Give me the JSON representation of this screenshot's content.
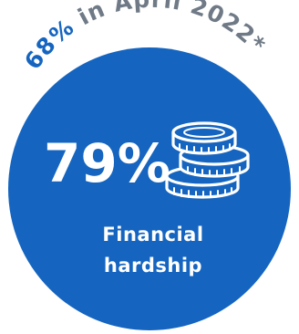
{
  "arc_label": {
    "highlight": "68%",
    "rest": " in April 2022*"
  },
  "stat": {
    "value": "79%",
    "label_line1": "Financial",
    "label_line2": "hardship"
  },
  "icon": "coin-stack-icon",
  "colors": {
    "circle": "#1565c0",
    "highlight_text": "#1565c0",
    "arc_text": "#6f7a86",
    "stat_text": "#ffffff"
  }
}
